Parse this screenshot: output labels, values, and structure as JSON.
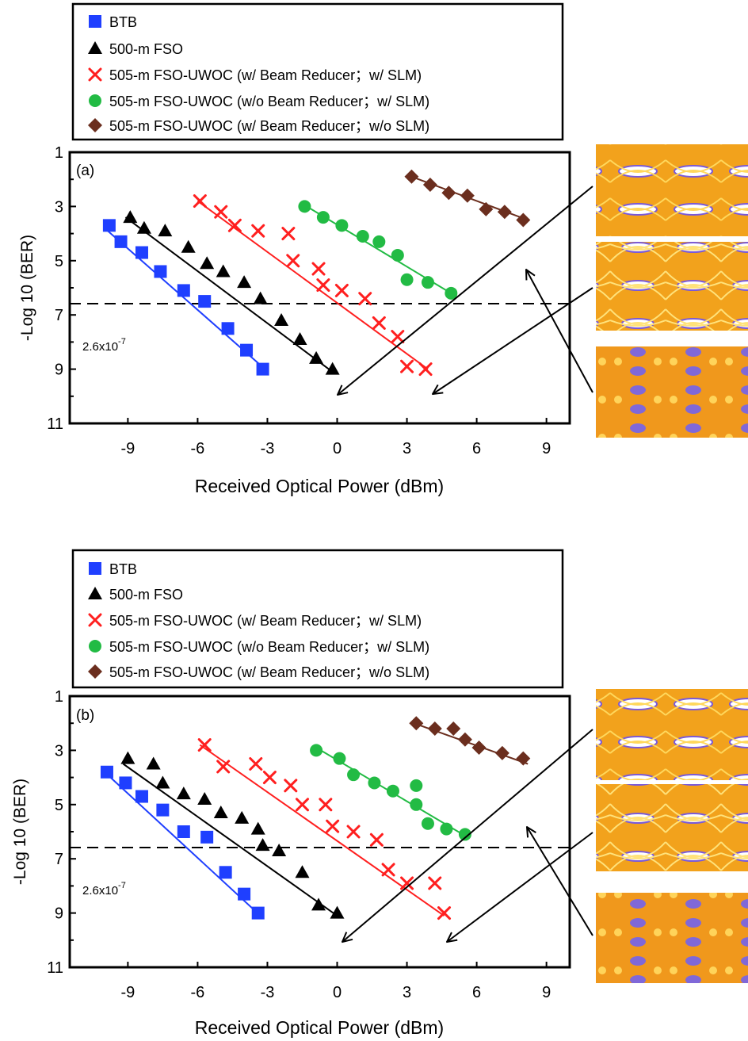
{
  "legend": [
    {
      "key": "btb",
      "label": "BTB",
      "color": "#1f3fff",
      "marker": "square"
    },
    {
      "key": "fso",
      "label": "500-m FSO",
      "color": "#000000",
      "marker": "triangle"
    },
    {
      "key": "wbr_wslm",
      "label": "505-m FSO-UWOC (w/   Beam Reducer；w/   SLM)",
      "color": "#ff1f1f",
      "marker": "cross"
    },
    {
      "key": "wobr_wslm",
      "label": "505-m FSO-UWOC (w/o Beam Reducer；w/   SLM)",
      "color": "#22bb44",
      "marker": "circle"
    },
    {
      "key": "wbr_woslm",
      "label": "505-m FSO-UWOC (w/   Beam Reducer；w/o SLM)",
      "color": "#6b2e1e",
      "marker": "diamond"
    }
  ],
  "chart_data": [
    {
      "type": "scatter",
      "panel_label": "(a)",
      "xlabel": "Received  Optical  Power  (dBm)",
      "ylabel": "-Log 10 (BER)",
      "xlim": [
        -11.5,
        10
      ],
      "ylim": [
        1,
        11
      ],
      "y_inverted": true,
      "xticks": [
        -9,
        -6,
        -3,
        0,
        3,
        6,
        9
      ],
      "yticks": [
        1,
        3,
        5,
        7,
        9,
        11
      ],
      "threshold": {
        "label_base": "2.6x10",
        "label_exp": "-7",
        "value": 6.585
      },
      "series": [
        {
          "key": "btb",
          "points": [
            [
              -9.8,
              3.7
            ],
            [
              -9.3,
              4.3
            ],
            [
              -8.4,
              4.7
            ],
            [
              -7.6,
              5.4
            ],
            [
              -6.6,
              6.1
            ],
            [
              -5.7,
              6.5
            ],
            [
              -4.7,
              7.5
            ],
            [
              -3.9,
              8.3
            ],
            [
              -3.2,
              9.0
            ]
          ],
          "fit": [
            [
              -10.0,
              3.8
            ],
            [
              -3.1,
              9.0
            ]
          ]
        },
        {
          "key": "fso",
          "points": [
            [
              -8.9,
              3.4
            ],
            [
              -8.3,
              3.8
            ],
            [
              -7.4,
              3.9
            ],
            [
              -6.4,
              4.5
            ],
            [
              -5.6,
              5.1
            ],
            [
              -4.9,
              5.4
            ],
            [
              -4.0,
              5.8
            ],
            [
              -3.3,
              6.4
            ],
            [
              -2.4,
              7.2
            ],
            [
              -1.6,
              7.9
            ],
            [
              -0.9,
              8.6
            ],
            [
              -0.2,
              9.0
            ]
          ],
          "fit": [
            [
              -9.1,
              3.4
            ],
            [
              -0.2,
              9.1
            ]
          ]
        },
        {
          "key": "wbr_wslm",
          "points": [
            [
              -5.9,
              2.8
            ],
            [
              -5.0,
              3.2
            ],
            [
              -4.4,
              3.7
            ],
            [
              -3.4,
              3.9
            ],
            [
              -2.1,
              4.0
            ],
            [
              -1.9,
              5.0
            ],
            [
              -0.8,
              5.3
            ],
            [
              -0.6,
              5.9
            ],
            [
              0.2,
              6.1
            ],
            [
              1.2,
              6.4
            ],
            [
              1.8,
              7.3
            ],
            [
              2.6,
              7.8
            ],
            [
              3.0,
              8.9
            ],
            [
              3.8,
              9.0
            ]
          ],
          "fit": [
            [
              -6.0,
              2.8
            ],
            [
              3.9,
              9.0
            ]
          ]
        },
        {
          "key": "wobr_wslm",
          "points": [
            [
              -1.4,
              3.0
            ],
            [
              -0.6,
              3.4
            ],
            [
              0.2,
              3.7
            ],
            [
              1.1,
              4.1
            ],
            [
              1.8,
              4.3
            ],
            [
              2.6,
              4.8
            ],
            [
              3.0,
              5.7
            ],
            [
              3.9,
              5.8
            ],
            [
              4.9,
              6.2
            ]
          ],
          "fit": [
            [
              -1.5,
              2.9
            ],
            [
              4.9,
              6.2
            ]
          ]
        },
        {
          "key": "wbr_woslm",
          "points": [
            [
              3.2,
              1.9
            ],
            [
              4.0,
              2.2
            ],
            [
              4.8,
              2.5
            ],
            [
              5.6,
              2.6
            ],
            [
              6.4,
              3.1
            ],
            [
              7.2,
              3.2
            ],
            [
              8.0,
              3.5
            ]
          ],
          "fit": [
            [
              3.2,
              1.9
            ],
            [
              8.2,
              3.5
            ]
          ]
        }
      ]
    },
    {
      "type": "scatter",
      "panel_label": "(b)",
      "xlabel": "Received  Optical  Power  (dBm)",
      "ylabel": "-Log 10 (BER)",
      "xlim": [
        -11.5,
        10
      ],
      "ylim": [
        1,
        11
      ],
      "y_inverted": true,
      "xticks": [
        -9,
        -6,
        -3,
        0,
        3,
        6,
        9
      ],
      "yticks": [
        1,
        3,
        5,
        7,
        9,
        11
      ],
      "threshold": {
        "label_base": "2.6x10",
        "label_exp": "-7",
        "value": 6.585
      },
      "series": [
        {
          "key": "btb",
          "points": [
            [
              -9.9,
              3.8
            ],
            [
              -9.1,
              4.2
            ],
            [
              -8.4,
              4.7
            ],
            [
              -7.5,
              5.2
            ],
            [
              -6.6,
              6.0
            ],
            [
              -5.6,
              6.2
            ],
            [
              -4.8,
              7.5
            ],
            [
              -4.0,
              8.3
            ],
            [
              -3.4,
              9.0
            ]
          ],
          "fit": [
            [
              -10.0,
              3.8
            ],
            [
              -3.3,
              9.1
            ]
          ]
        },
        {
          "key": "fso",
          "points": [
            [
              -9.0,
              3.3
            ],
            [
              -7.9,
              3.5
            ],
            [
              -7.5,
              4.2
            ],
            [
              -6.6,
              4.6
            ],
            [
              -5.7,
              4.8
            ],
            [
              -5.0,
              5.3
            ],
            [
              -4.1,
              5.5
            ],
            [
              -3.4,
              5.9
            ],
            [
              -3.2,
              6.5
            ],
            [
              -2.5,
              6.7
            ],
            [
              -1.5,
              7.5
            ],
            [
              -0.8,
              8.7
            ],
            [
              0.0,
              9.0
            ]
          ],
          "fit": [
            [
              -9.2,
              3.5
            ],
            [
              0.0,
              9.1
            ]
          ]
        },
        {
          "key": "wbr_wslm",
          "points": [
            [
              -5.7,
              2.8
            ],
            [
              -4.9,
              3.6
            ],
            [
              -3.5,
              3.5
            ],
            [
              -2.9,
              4.0
            ],
            [
              -2.0,
              4.3
            ],
            [
              -1.5,
              5.0
            ],
            [
              -0.5,
              5.0
            ],
            [
              -0.2,
              5.8
            ],
            [
              0.7,
              6.0
            ],
            [
              1.7,
              6.3
            ],
            [
              2.2,
              7.4
            ],
            [
              3.0,
              7.9
            ],
            [
              4.2,
              7.9
            ],
            [
              4.6,
              9.0
            ]
          ],
          "fit": [
            [
              -5.9,
              2.8
            ],
            [
              4.6,
              9.1
            ]
          ]
        },
        {
          "key": "wobr_wslm",
          "points": [
            [
              -0.9,
              3.0
            ],
            [
              0.1,
              3.3
            ],
            [
              0.7,
              3.9
            ],
            [
              1.6,
              4.2
            ],
            [
              2.4,
              4.5
            ],
            [
              3.4,
              4.3
            ],
            [
              3.4,
              5.0
            ],
            [
              3.9,
              5.7
            ],
            [
              4.7,
              5.9
            ],
            [
              5.5,
              6.1
            ]
          ],
          "fit": [
            [
              -0.9,
              2.9
            ],
            [
              5.6,
              6.2
            ]
          ]
        },
        {
          "key": "wbr_woslm",
          "points": [
            [
              3.4,
              2.0
            ],
            [
              4.2,
              2.2
            ],
            [
              5.0,
              2.2
            ],
            [
              5.5,
              2.6
            ],
            [
              6.1,
              2.9
            ],
            [
              7.1,
              3.1
            ],
            [
              8.0,
              3.3
            ]
          ],
          "fit": [
            [
              3.3,
              2.0
            ],
            [
              8.2,
              3.5
            ]
          ]
        }
      ]
    }
  ]
}
